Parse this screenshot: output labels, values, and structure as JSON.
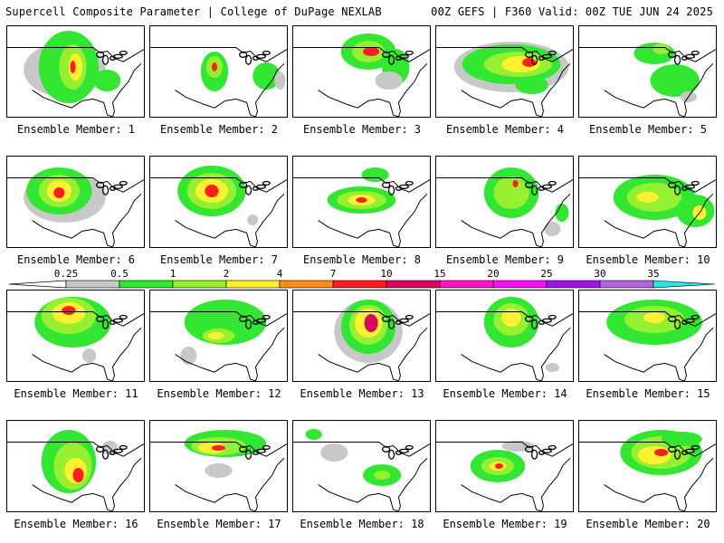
{
  "header": {
    "left": "Supercell Composite Parameter | College of DuPage NEXLAB",
    "right": "00Z GEFS | F360 Valid: 00Z TUE JUN 24 2025"
  },
  "member_prefix": "Ensemble Member: ",
  "members": [
    1,
    2,
    3,
    4,
    5,
    6,
    7,
    8,
    9,
    10,
    11,
    12,
    13,
    14,
    15,
    16,
    17,
    18,
    19,
    20
  ],
  "colorbar": {
    "ticks": [
      "0.25",
      "0.5",
      "1",
      "2",
      "4",
      "7",
      "10",
      "15",
      "20",
      "25",
      "30",
      "35"
    ],
    "colors": [
      "#c8c8c8",
      "#32e632",
      "#96f032",
      "#fff030",
      "#ff8c1e",
      "#ff1e1e",
      "#d20a64",
      "#ff14c8",
      "#f014f0",
      "#a014e6",
      "#b464dc",
      "#28e6e6"
    ]
  },
  "fields": {
    "1": [
      [
        "#c8c8c8",
        0.42,
        0.48,
        0.3,
        0.3
      ],
      [
        "#32e632",
        0.45,
        0.45,
        0.22,
        0.4
      ],
      [
        "#96f032",
        0.48,
        0.45,
        0.1,
        0.25
      ],
      [
        "#fff030",
        0.5,
        0.45,
        0.05,
        0.15
      ],
      [
        "#ff1e1e",
        0.48,
        0.45,
        0.02,
        0.07
      ],
      [
        "#32e632",
        0.73,
        0.6,
        0.1,
        0.12
      ]
    ],
    "2": [
      [
        "#32e632",
        0.47,
        0.5,
        0.1,
        0.22
      ],
      [
        "#96f032",
        0.47,
        0.45,
        0.06,
        0.12
      ],
      [
        "#ff1e1e",
        0.47,
        0.45,
        0.02,
        0.05
      ],
      [
        "#32e632",
        0.85,
        0.55,
        0.1,
        0.15
      ],
      [
        "#c8c8c8",
        0.95,
        0.6,
        0.04,
        0.1
      ]
    ],
    "3": [
      [
        "#32e632",
        0.55,
        0.28,
        0.2,
        0.2
      ],
      [
        "#96f032",
        0.55,
        0.28,
        0.12,
        0.12
      ],
      [
        "#ff1e1e",
        0.57,
        0.28,
        0.06,
        0.05
      ],
      [
        "#32e632",
        0.75,
        0.45,
        0.1,
        0.2
      ],
      [
        "#c8c8c8",
        0.7,
        0.6,
        0.1,
        0.1
      ]
    ],
    "4": [
      [
        "#c8c8c8",
        0.55,
        0.45,
        0.42,
        0.28
      ],
      [
        "#32e632",
        0.55,
        0.42,
        0.36,
        0.22
      ],
      [
        "#96f032",
        0.6,
        0.42,
        0.25,
        0.14
      ],
      [
        "#fff030",
        0.62,
        0.42,
        0.14,
        0.09
      ],
      [
        "#ff1e1e",
        0.68,
        0.4,
        0.05,
        0.05
      ],
      [
        "#32e632",
        0.7,
        0.65,
        0.12,
        0.1
      ]
    ],
    "5": [
      [
        "#32e632",
        0.55,
        0.3,
        0.15,
        0.12
      ],
      [
        "#96f032",
        0.6,
        0.25,
        0.06,
        0.06
      ],
      [
        "#32e632",
        0.7,
        0.6,
        0.18,
        0.18
      ],
      [
        "#c8c8c8",
        0.8,
        0.78,
        0.06,
        0.06
      ]
    ],
    "6": [
      [
        "#c8c8c8",
        0.42,
        0.45,
        0.3,
        0.28
      ],
      [
        "#32e632",
        0.38,
        0.38,
        0.24,
        0.26
      ],
      [
        "#96f032",
        0.38,
        0.38,
        0.15,
        0.18
      ],
      [
        "#fff030",
        0.38,
        0.38,
        0.09,
        0.12
      ],
      [
        "#ff1e1e",
        0.38,
        0.4,
        0.04,
        0.06
      ]
    ],
    "7": [
      [
        "#32e632",
        0.45,
        0.38,
        0.25,
        0.28
      ],
      [
        "#96f032",
        0.45,
        0.38,
        0.18,
        0.2
      ],
      [
        "#fff030",
        0.45,
        0.38,
        0.12,
        0.13
      ],
      [
        "#ff1e1e",
        0.45,
        0.38,
        0.05,
        0.07
      ],
      [
        "#c8c8c8",
        0.75,
        0.7,
        0.04,
        0.06
      ]
    ],
    "8": [
      [
        "#32e632",
        0.5,
        0.48,
        0.25,
        0.15
      ],
      [
        "#96f032",
        0.5,
        0.48,
        0.18,
        0.1
      ],
      [
        "#fff030",
        0.5,
        0.48,
        0.1,
        0.06
      ],
      [
        "#ff1e1e",
        0.5,
        0.48,
        0.04,
        0.03
      ],
      [
        "#32e632",
        0.6,
        0.2,
        0.1,
        0.08
      ]
    ],
    "9": [
      [
        "#32e632",
        0.55,
        0.4,
        0.2,
        0.28
      ],
      [
        "#96f032",
        0.55,
        0.4,
        0.13,
        0.18
      ],
      [
        "#ff1e1e",
        0.58,
        0.3,
        0.02,
        0.04
      ],
      [
        "#32e632",
        0.92,
        0.62,
        0.05,
        0.1
      ],
      [
        "#c8c8c8",
        0.85,
        0.8,
        0.06,
        0.08
      ]
    ],
    "10": [
      [
        "#32e632",
        0.55,
        0.45,
        0.3,
        0.25
      ],
      [
        "#96f032",
        0.55,
        0.45,
        0.2,
        0.16
      ],
      [
        "#fff030",
        0.5,
        0.45,
        0.08,
        0.06
      ],
      [
        "#32e632",
        0.85,
        0.6,
        0.14,
        0.18
      ],
      [
        "#fff030",
        0.88,
        0.62,
        0.05,
        0.08
      ]
    ],
    "11": [
      [
        "#32e632",
        0.48,
        0.35,
        0.28,
        0.28
      ],
      [
        "#96f032",
        0.45,
        0.28,
        0.2,
        0.2
      ],
      [
        "#fff030",
        0.45,
        0.25,
        0.12,
        0.12
      ],
      [
        "#ff1e1e",
        0.45,
        0.22,
        0.05,
        0.05
      ],
      [
        "#c8c8c8",
        0.6,
        0.72,
        0.05,
        0.08
      ]
    ],
    "12": [
      [
        "#32e632",
        0.55,
        0.35,
        0.3,
        0.25
      ],
      [
        "#96f032",
        0.5,
        0.5,
        0.12,
        0.08
      ],
      [
        "#fff030",
        0.48,
        0.5,
        0.06,
        0.04
      ],
      [
        "#c8c8c8",
        0.28,
        0.72,
        0.06,
        0.1
      ]
    ],
    "13": [
      [
        "#c8c8c8",
        0.55,
        0.45,
        0.25,
        0.35
      ],
      [
        "#32e632",
        0.55,
        0.4,
        0.2,
        0.3
      ],
      [
        "#96f032",
        0.55,
        0.38,
        0.14,
        0.22
      ],
      [
        "#fff030",
        0.55,
        0.36,
        0.1,
        0.16
      ],
      [
        "#d20a64",
        0.57,
        0.36,
        0.05,
        0.1
      ]
    ],
    "14": [
      [
        "#32e632",
        0.55,
        0.35,
        0.2,
        0.28
      ],
      [
        "#96f032",
        0.55,
        0.32,
        0.13,
        0.18
      ],
      [
        "#fff030",
        0.55,
        0.3,
        0.07,
        0.1
      ],
      [
        "#c8c8c8",
        0.85,
        0.85,
        0.05,
        0.05
      ]
    ],
    "15": [
      [
        "#32e632",
        0.55,
        0.35,
        0.35,
        0.25
      ],
      [
        "#96f032",
        0.55,
        0.32,
        0.22,
        0.15
      ],
      [
        "#fff030",
        0.55,
        0.3,
        0.08,
        0.06
      ]
    ],
    "16": [
      [
        "#32e632",
        0.45,
        0.45,
        0.2,
        0.35
      ],
      [
        "#96f032",
        0.48,
        0.5,
        0.14,
        0.26
      ],
      [
        "#fff030",
        0.5,
        0.55,
        0.08,
        0.14
      ],
      [
        "#ff1e1e",
        0.52,
        0.6,
        0.04,
        0.08
      ],
      [
        "#c8c8c8",
        0.75,
        0.3,
        0.06,
        0.08
      ]
    ],
    "17": [
      [
        "#32e632",
        0.55,
        0.25,
        0.3,
        0.15
      ],
      [
        "#96f032",
        0.5,
        0.28,
        0.2,
        0.1
      ],
      [
        "#fff030",
        0.45,
        0.3,
        0.1,
        0.06
      ],
      [
        "#ff1e1e",
        0.5,
        0.3,
        0.05,
        0.03
      ],
      [
        "#c8c8c8",
        0.5,
        0.55,
        0.1,
        0.08
      ]
    ],
    "18": [
      [
        "#32e632",
        0.65,
        0.6,
        0.14,
        0.12
      ],
      [
        "#96f032",
        0.65,
        0.6,
        0.06,
        0.05
      ],
      [
        "#c8c8c8",
        0.3,
        0.35,
        0.1,
        0.1
      ],
      [
        "#32e632",
        0.15,
        0.15,
        0.06,
        0.06
      ]
    ],
    "19": [
      [
        "#32e632",
        0.45,
        0.5,
        0.2,
        0.18
      ],
      [
        "#96f032",
        0.45,
        0.5,
        0.12,
        0.1
      ],
      [
        "#fff030",
        0.45,
        0.5,
        0.06,
        0.05
      ],
      [
        "#ff1e1e",
        0.46,
        0.5,
        0.03,
        0.03
      ],
      [
        "#c8c8c8",
        0.6,
        0.28,
        0.12,
        0.06
      ]
    ],
    "20": [
      [
        "#32e632",
        0.6,
        0.35,
        0.3,
        0.25
      ],
      [
        "#96f032",
        0.6,
        0.35,
        0.22,
        0.18
      ],
      [
        "#fff030",
        0.55,
        0.38,
        0.12,
        0.1
      ],
      [
        "#ff1e1e",
        0.6,
        0.35,
        0.05,
        0.04
      ],
      [
        "#32e632",
        0.75,
        0.2,
        0.15,
        0.08
      ]
    ]
  }
}
